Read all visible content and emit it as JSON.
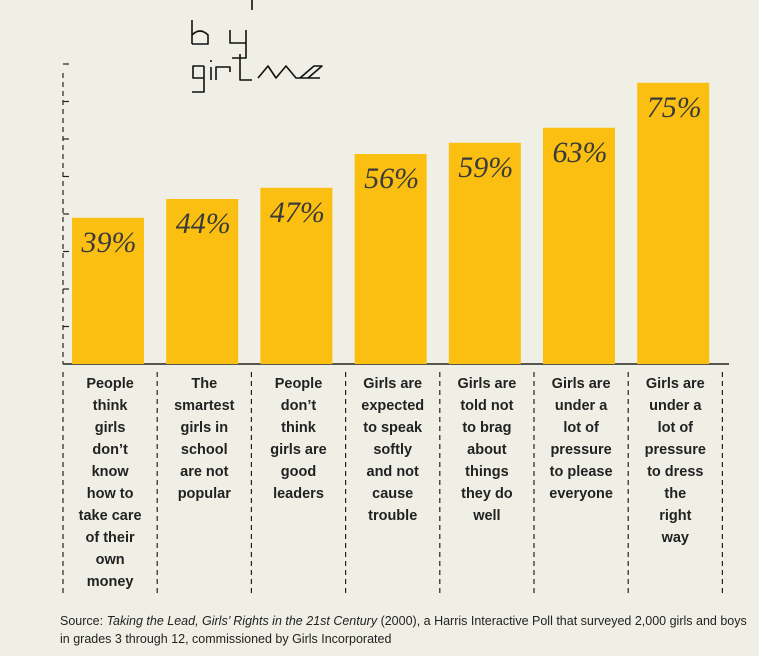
{
  "title_art": {
    "line1": "by",
    "line2": "girls"
  },
  "chart_data": {
    "type": "bar",
    "title": "",
    "xlabel": "",
    "ylabel": "",
    "ylim": [
      0,
      80
    ],
    "grid": false,
    "categories": [
      "People think girls don’t know how to take care of their own money",
      "The smartest girls in school are not popular",
      "People don’t think girls are good leaders",
      "Girls are expected to speak softly and not cause trouble",
      "Girls are told not to brag about things they do well",
      "Girls are under a lot of pressure to please everyone",
      "Girls are under a lot of pressure to dress the right way"
    ],
    "category_lines": [
      [
        "People",
        "think",
        "girls",
        "don’t",
        "know",
        "how to",
        "take care",
        "of their",
        "own",
        "money"
      ],
      [
        "The",
        "smartest",
        "girls in",
        "school",
        "are not",
        "popular"
      ],
      [
        "People",
        "don’t",
        "think",
        "girls are",
        "good",
        "leaders"
      ],
      [
        "Girls are",
        "expected",
        "to speak",
        "softly",
        "and not",
        "cause",
        "trouble"
      ],
      [
        "Girls are",
        "told not",
        "to brag",
        "about",
        "things",
        "they do",
        "well"
      ],
      [
        "Girls are",
        "under a",
        "lot of",
        "pressure",
        "to please",
        "everyone"
      ],
      [
        "Girls are",
        "under a",
        "lot of",
        "pressure",
        "to dress",
        "the",
        "right",
        "way"
      ]
    ],
    "values": [
      39,
      44,
      47,
      56,
      59,
      63,
      75
    ],
    "value_labels": [
      "39%",
      "44%",
      "47%",
      "56%",
      "59%",
      "63%",
      "75%"
    ],
    "bar_color": "#fbbf12"
  },
  "source": {
    "prefix": "Source: ",
    "title": "Taking the Lead, Girls’ Rights in the 21st Century",
    "rest": " (2000), a Harris Interactive Poll that surveyed 2,000 girls and boys in grades 3 through 12, commissioned by Girls Incorporated"
  }
}
